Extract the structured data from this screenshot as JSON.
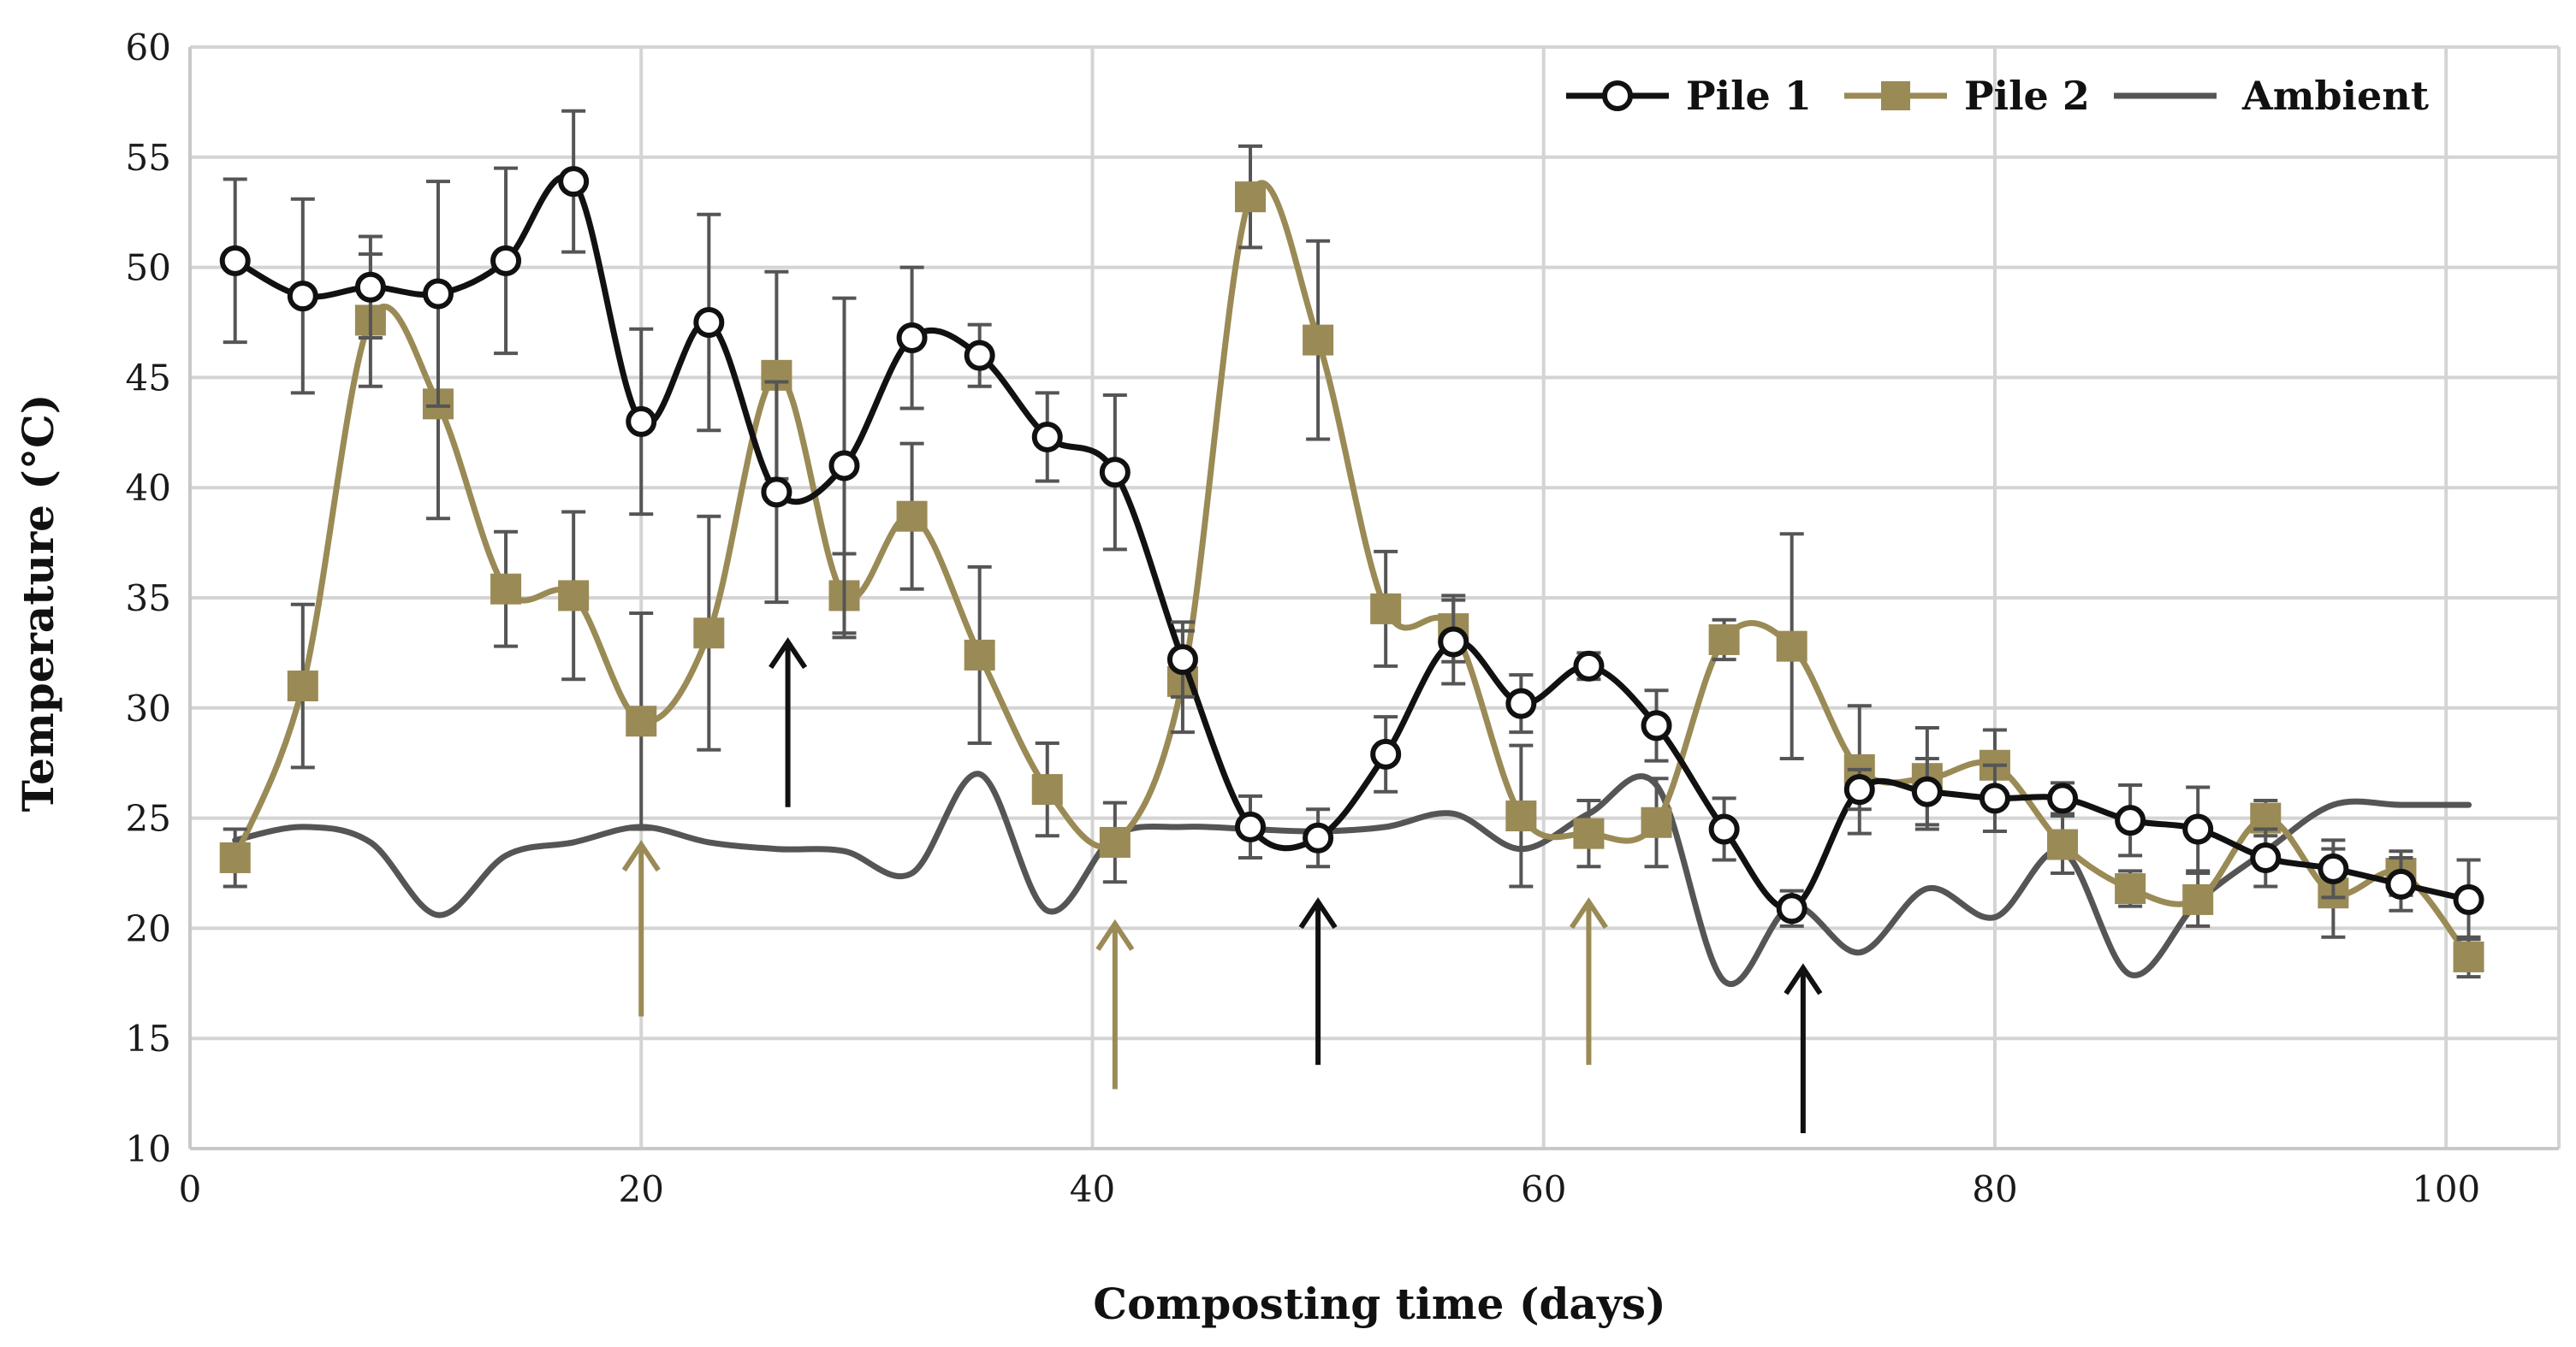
{
  "chart_data": {
    "type": "line",
    "title": "",
    "xlabel": "Composting time (days)",
    "ylabel": "Temperature (°C)",
    "xlim": [
      0,
      105
    ],
    "ylim": [
      10,
      60
    ],
    "xticks": [
      0,
      20,
      40,
      60,
      80,
      100
    ],
    "yticks": [
      10,
      15,
      20,
      25,
      30,
      35,
      40,
      45,
      50,
      55,
      60
    ],
    "xtick_labels": [
      "0",
      "20",
      "40",
      "60",
      "80",
      "100"
    ],
    "ytick_labels": [
      "10",
      "15",
      "20",
      "25",
      "30",
      "35",
      "40",
      "45",
      "50",
      "55",
      "60"
    ],
    "grid": true,
    "legend_position": "top-right",
    "colors": {
      "pile1": "#111111",
      "pile2": "#9a8a55",
      "ambient": "#555555",
      "grid": "#d4d4d4",
      "errorbar": "#555555"
    },
    "series": [
      {
        "name": "Pile 1",
        "marker": "open-circle",
        "x": [
          2,
          5,
          8,
          11,
          14,
          17,
          20,
          23,
          26,
          29,
          32,
          35,
          38,
          41,
          44,
          47,
          50,
          53,
          56,
          59,
          62,
          65,
          68,
          71,
          74,
          77,
          80,
          83,
          86,
          89,
          92,
          95,
          98,
          101
        ],
        "y": [
          50.3,
          48.7,
          49.1,
          48.8,
          50.3,
          53.9,
          43.0,
          47.5,
          39.8,
          41.0,
          46.8,
          46.0,
          42.3,
          40.7,
          32.2,
          24.6,
          24.1,
          27.9,
          33.0,
          30.2,
          31.9,
          29.2,
          24.5,
          20.9,
          26.3,
          26.2,
          25.9,
          25.9,
          24.9,
          24.5,
          23.2,
          22.7,
          22.0,
          21.3
        ],
        "error": [
          3.7,
          4.4,
          2.3,
          5.1,
          4.2,
          3.2,
          4.2,
          4.9,
          5.0,
          7.6,
          3.2,
          1.4,
          2.0,
          3.5,
          1.7,
          1.4,
          1.3,
          1.7,
          1.9,
          1.3,
          0.6,
          1.6,
          1.4,
          0.8,
          0.9,
          1.5,
          1.5,
          0.7,
          1.6,
          1.9,
          1.3,
          1.3,
          1.2,
          1.8
        ]
      },
      {
        "name": "Pile 2",
        "marker": "filled-square",
        "x": [
          2,
          5,
          8,
          11,
          14,
          17,
          20,
          23,
          26,
          29,
          32,
          35,
          38,
          41,
          44,
          47,
          50,
          53,
          56,
          59,
          62,
          65,
          68,
          71,
          74,
          77,
          80,
          83,
          86,
          89,
          92,
          95,
          98,
          101
        ],
        "y": [
          23.2,
          31.0,
          47.6,
          43.8,
          35.4,
          35.1,
          29.4,
          33.4,
          45.1,
          35.1,
          38.7,
          32.4,
          26.3,
          23.9,
          31.2,
          53.2,
          46.7,
          34.5,
          33.6,
          25.1,
          24.3,
          24.8,
          33.1,
          32.8,
          27.2,
          26.8,
          27.4,
          23.8,
          21.8,
          21.3,
          25.0,
          21.6,
          22.5,
          18.7
        ],
        "error": [
          1.3,
          3.7,
          3.0,
          5.2,
          2.6,
          3.8,
          4.9,
          5.3,
          4.7,
          1.9,
          3.3,
          4.0,
          2.1,
          1.8,
          2.3,
          2.3,
          4.5,
          2.6,
          1.5,
          3.2,
          1.5,
          2.0,
          0.9,
          5.1,
          2.9,
          2.3,
          1.6,
          1.3,
          0.8,
          1.2,
          0.8,
          2.0,
          1.0,
          0.9
        ]
      },
      {
        "name": "Ambient",
        "marker": "none",
        "x": [
          2,
          5,
          8,
          11,
          14,
          17,
          20,
          23,
          26,
          29,
          32,
          35,
          38,
          41,
          44,
          47,
          50,
          53,
          56,
          59,
          62,
          65,
          68,
          71,
          74,
          77,
          80,
          83,
          86,
          89,
          92,
          95,
          98,
          101
        ],
        "y": [
          24.0,
          24.6,
          23.9,
          20.6,
          23.3,
          23.9,
          24.6,
          23.9,
          23.6,
          23.5,
          22.5,
          27.0,
          20.8,
          24.2,
          24.6,
          24.5,
          24.4,
          24.6,
          25.2,
          23.6,
          25.2,
          26.5,
          17.6,
          21.0,
          18.9,
          21.8,
          20.5,
          23.5,
          17.9,
          21.2,
          23.5,
          25.6,
          25.6,
          25.6
        ]
      }
    ],
    "arrows": [
      {
        "x": 26.5,
        "y_from": 25.5,
        "y_to": 33.0,
        "color": "pile1"
      },
      {
        "x": 50,
        "y_from": 13.8,
        "y_to": 21.2,
        "color": "pile1"
      },
      {
        "x": 71.5,
        "y_from": 10.7,
        "y_to": 18.2,
        "color": "pile1"
      },
      {
        "x": 20,
        "y_from": 16.0,
        "y_to": 23.8,
        "color": "pile2"
      },
      {
        "x": 41,
        "y_from": 12.7,
        "y_to": 20.2,
        "color": "pile2"
      },
      {
        "x": 62,
        "y_from": 13.8,
        "y_to": 21.2,
        "color": "pile2"
      }
    ]
  }
}
